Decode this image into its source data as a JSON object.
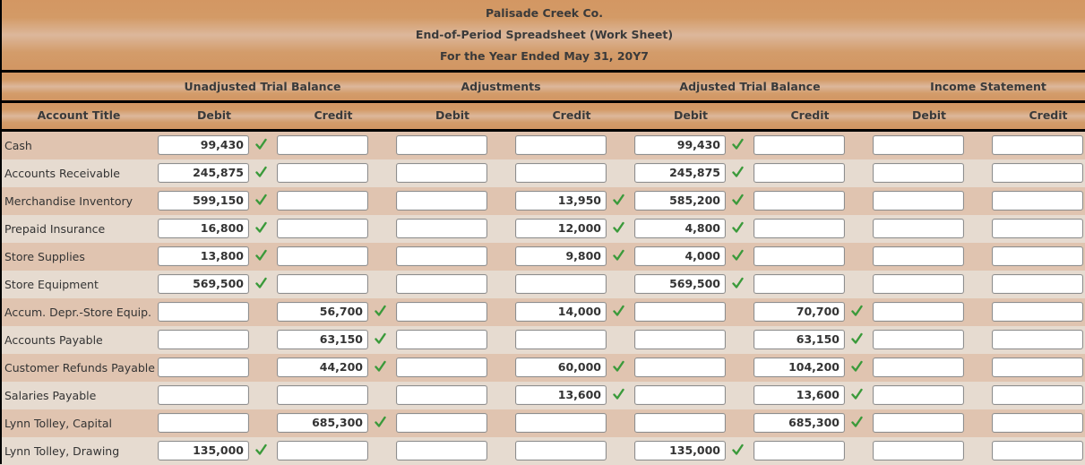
{
  "header": {
    "company": "Palisade Creek Co.",
    "title": "End-of-Period Spreadsheet (Work Sheet)",
    "period": "For the Year Ended May 31, 20Y7"
  },
  "groups": {
    "unadjusted": "Unadjusted Trial Balance",
    "adjustments": "Adjustments",
    "adjusted": "Adjusted Trial Balance",
    "income": "Income Statement"
  },
  "columns": {
    "account_title": "Account Title",
    "utb_debit": "Debit",
    "utb_credit": "Credit",
    "adj_debit": "Debit",
    "adj_credit": "Credit",
    "atb_debit": "Debit",
    "atb_credit": "Credit",
    "is_debit": "Debit",
    "is_credit": "Credit"
  },
  "check_color": "#3a9a3a",
  "rows": [
    {
      "account": "Cash",
      "utb_debit": "99,430",
      "utb_credit": "",
      "adj_debit": "",
      "adj_credit": "",
      "atb_debit": "99,430",
      "atb_credit": "",
      "is_debit": "",
      "is_credit": ""
    },
    {
      "account": "Accounts Receivable",
      "utb_debit": "245,875",
      "utb_credit": "",
      "adj_debit": "",
      "adj_credit": "",
      "atb_debit": "245,875",
      "atb_credit": "",
      "is_debit": "",
      "is_credit": ""
    },
    {
      "account": "Merchandise Inventory",
      "utb_debit": "599,150",
      "utb_credit": "",
      "adj_debit": "",
      "adj_credit": "13,950",
      "atb_debit": "585,200",
      "atb_credit": "",
      "is_debit": "",
      "is_credit": ""
    },
    {
      "account": "Prepaid Insurance",
      "utb_debit": "16,800",
      "utb_credit": "",
      "adj_debit": "",
      "adj_credit": "12,000",
      "atb_debit": "4,800",
      "atb_credit": "",
      "is_debit": "",
      "is_credit": ""
    },
    {
      "account": "Store Supplies",
      "utb_debit": "13,800",
      "utb_credit": "",
      "adj_debit": "",
      "adj_credit": "9,800",
      "atb_debit": "4,000",
      "atb_credit": "",
      "is_debit": "",
      "is_credit": ""
    },
    {
      "account": "Store Equipment",
      "utb_debit": "569,500",
      "utb_credit": "",
      "adj_debit": "",
      "adj_credit": "",
      "atb_debit": "569,500",
      "atb_credit": "",
      "is_debit": "",
      "is_credit": ""
    },
    {
      "account": "Accum. Depr.-Store Equip.",
      "utb_debit": "",
      "utb_credit": "56,700",
      "adj_debit": "",
      "adj_credit": "14,000",
      "atb_debit": "",
      "atb_credit": "70,700",
      "is_debit": "",
      "is_credit": ""
    },
    {
      "account": "Accounts Payable",
      "utb_debit": "",
      "utb_credit": "63,150",
      "adj_debit": "",
      "adj_credit": "",
      "atb_debit": "",
      "atb_credit": "63,150",
      "is_debit": "",
      "is_credit": ""
    },
    {
      "account": "Customer Refunds Payable",
      "utb_debit": "",
      "utb_credit": "44,200",
      "adj_debit": "",
      "adj_credit": "60,000",
      "atb_debit": "",
      "atb_credit": "104,200",
      "is_debit": "",
      "is_credit": ""
    },
    {
      "account": "Salaries Payable",
      "utb_debit": "",
      "utb_credit": "",
      "adj_debit": "",
      "adj_credit": "13,600",
      "atb_debit": "",
      "atb_credit": "13,600",
      "is_debit": "",
      "is_credit": ""
    },
    {
      "account": "Lynn Tolley, Capital",
      "utb_debit": "",
      "utb_credit": "685,300",
      "adj_debit": "",
      "adj_credit": "",
      "atb_debit": "",
      "atb_credit": "685,300",
      "is_debit": "",
      "is_credit": ""
    },
    {
      "account": "Lynn Tolley, Drawing",
      "utb_debit": "135,000",
      "utb_credit": "",
      "adj_debit": "",
      "adj_credit": "",
      "atb_debit": "135,000",
      "atb_credit": "",
      "is_debit": "",
      "is_credit": ""
    }
  ]
}
